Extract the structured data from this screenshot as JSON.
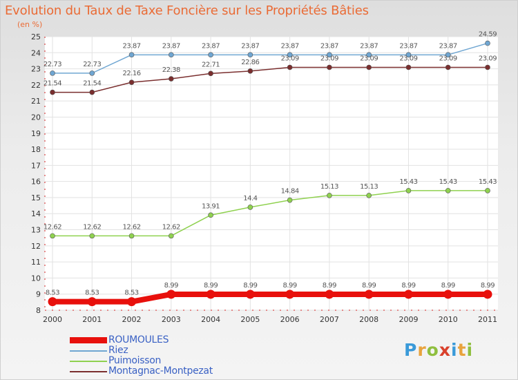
{
  "header": {
    "title": "Evolution du Taux de Taxe Foncière sur les Propriétés Bâties",
    "unit": "(en %)"
  },
  "logo": {
    "letters": [
      "P",
      "r",
      "o",
      "x",
      "i",
      "t",
      "i"
    ],
    "colors": [
      "#3a9ad9",
      "#e8a33d",
      "#8fbf3f",
      "#d9402b",
      "#3a9ad9",
      "#e8a33d",
      "#8fbf3f"
    ]
  },
  "chart_data": {
    "type": "line",
    "title": "Evolution du Taux de Taxe Foncière sur les Propriétés Bâties",
    "ylabel": "(en %)",
    "x": [
      "2000",
      "2001",
      "2002",
      "2003",
      "2004",
      "2005",
      "2006",
      "2007",
      "2008",
      "2009",
      "2010",
      "2011"
    ],
    "ylim": [
      8,
      25
    ],
    "yticks": [
      8,
      9,
      10,
      11,
      12,
      13,
      14,
      15,
      16,
      17,
      18,
      19,
      20,
      21,
      22,
      23,
      24,
      25
    ],
    "grid": true,
    "legend_position": "bottom-left",
    "series": [
      {
        "name": "ROUMOULES",
        "color": "#e8100c",
        "labels": [
          "8.53",
          "8.53",
          "8.53",
          "8.99",
          "8.99",
          "8.99",
          "8.99",
          "8.99",
          "8.99",
          "8.99",
          "8.99",
          "8.99"
        ],
        "values": [
          8.53,
          8.53,
          8.53,
          8.99,
          8.99,
          8.99,
          8.99,
          8.99,
          8.99,
          8.99,
          8.99,
          8.99
        ]
      },
      {
        "name": "Riez",
        "color": "#6fa6d2",
        "labels": [
          "22.73",
          "22.73",
          "23.87",
          "23.87",
          "23.87",
          "23.87",
          "23.87",
          "23.87",
          "23.87",
          "23.87",
          "23.87",
          "24.59"
        ],
        "values": [
          22.73,
          22.73,
          23.87,
          23.87,
          23.87,
          23.87,
          23.87,
          23.87,
          23.87,
          23.87,
          23.87,
          24.59
        ]
      },
      {
        "name": "Puimoisson",
        "color": "#8fd14f",
        "labels": [
          "12.62",
          "12.62",
          "12.62",
          "12.62",
          "13.91",
          "14.4",
          "14.84",
          "15.13",
          "15.13",
          "15.43",
          "15.43",
          "15.43"
        ],
        "values": [
          12.62,
          12.62,
          12.62,
          12.62,
          13.91,
          14.4,
          14.84,
          15.13,
          15.13,
          15.43,
          15.43,
          15.43
        ]
      },
      {
        "name": "Montagnac-Montpezat",
        "color": "#7a2e2e",
        "labels": [
          "21.54",
          "21.54",
          "22.16",
          "22.38",
          "22.71",
          "22.86",
          "23.09",
          "23.09",
          "23.09",
          "23.09",
          "23.09",
          "23.09"
        ],
        "values": [
          21.54,
          21.54,
          22.16,
          22.38,
          22.71,
          22.86,
          23.09,
          23.09,
          23.09,
          23.09,
          23.09,
          23.09
        ]
      }
    ]
  }
}
